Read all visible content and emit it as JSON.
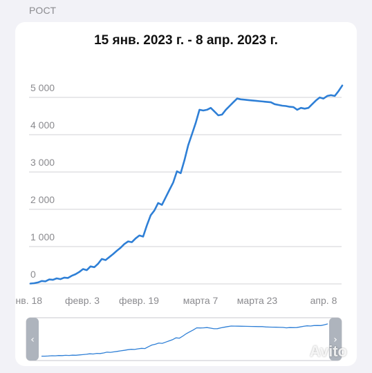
{
  "header": {
    "section_label": "РОСТ"
  },
  "chart_data": {
    "type": "line",
    "title": "15 янв. 2023 г. - 8 апр. 2023 г.",
    "xlabel": "",
    "ylabel": "",
    "x_ticks": [
      "янв. 18",
      "февр. 3",
      "февр. 19",
      "марта 7",
      "марта 23",
      "апр. 8"
    ],
    "y_ticks": [
      "0",
      "1 000",
      "2 000",
      "3 000",
      "4 000",
      "5 000"
    ],
    "ylim": [
      -250,
      5450
    ],
    "grid": true,
    "legend": "none",
    "color": "#2e7fd6",
    "series": [
      {
        "x": [
          0,
          1,
          2,
          3,
          4,
          5,
          6,
          7,
          8,
          9,
          10,
          11,
          12,
          13,
          14,
          15,
          16,
          17,
          18,
          19,
          20,
          21,
          22,
          23,
          24,
          25,
          26,
          27,
          28,
          29,
          30,
          31,
          32,
          33,
          34,
          35,
          36,
          37,
          38,
          39,
          40,
          41,
          42,
          43,
          44,
          45,
          46,
          47,
          48,
          49,
          50,
          51,
          52,
          53,
          54,
          55,
          56,
          57,
          58,
          59,
          60,
          61,
          62,
          63,
          64,
          65,
          66,
          67,
          68,
          69,
          70,
          71,
          72,
          73,
          74,
          75,
          76,
          77,
          78,
          79,
          80,
          81,
          82,
          83
        ],
        "values": [
          -10,
          0,
          20,
          60,
          50,
          100,
          90,
          130,
          110,
          150,
          140,
          200,
          240,
          300,
          380,
          350,
          450,
          430,
          520,
          650,
          620,
          700,
          780,
          870,
          950,
          1050,
          1120,
          1100,
          1200,
          1280,
          1250,
          1550,
          1820,
          1950,
          2150,
          2100,
          2300,
          2500,
          2700,
          3000,
          2950,
          3300,
          3700,
          4000,
          4300,
          4650,
          4630,
          4650,
          4700,
          4600,
          4500,
          4520,
          4650,
          4750,
          4850,
          4950,
          4930,
          4920,
          4910,
          4900,
          4890,
          4880,
          4870,
          4860,
          4850,
          4800,
          4780,
          4760,
          4750,
          4730,
          4720,
          4650,
          4700,
          4680,
          4700,
          4800,
          4900,
          4980,
          4950,
          5020,
          5040,
          5020,
          5150,
          5300
        ]
      }
    ]
  },
  "navigator": {
    "left_arrow": "‹",
    "right_arrow": "›",
    "range_start": 0,
    "range_end": 1
  },
  "watermark": "Avito"
}
